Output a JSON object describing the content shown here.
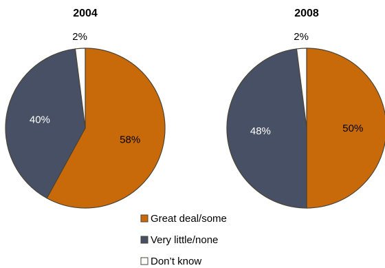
{
  "chart_data": [
    {
      "type": "pie",
      "title": "2004",
      "categories": [
        "Great deal/some",
        "Very little/none",
        "Don’t know"
      ],
      "values": [
        58,
        40,
        2
      ],
      "data_labels": [
        "58%",
        "40%",
        "2%"
      ]
    },
    {
      "type": "pie",
      "title": "2008",
      "categories": [
        "Great deal/some",
        "Very little/none",
        "Don’t know"
      ],
      "values": [
        50,
        48,
        2
      ],
      "data_labels": [
        "50%",
        "48%",
        "2%"
      ]
    }
  ],
  "legend": {
    "placement": "bottom-center",
    "items": [
      {
        "label": "Great deal/some",
        "color": "#C96A0A"
      },
      {
        "label": "Very little/none",
        "color": "#475064"
      },
      {
        "label": "Don’t know",
        "color": "#FFFFFF"
      }
    ]
  },
  "colors": {
    "slice_stroke": "#4A4436",
    "label_dark": "#000000",
    "label_light": "#FFFFFF"
  }
}
